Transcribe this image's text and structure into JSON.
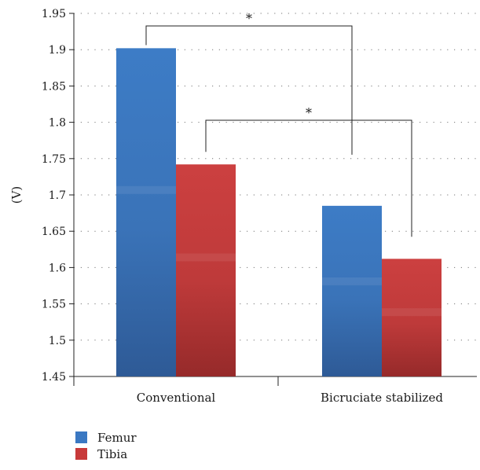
{
  "chart_data": {
    "type": "bar",
    "title": "",
    "xlabel": "",
    "ylabel": "(V)",
    "ylim": [
      1.45,
      1.95
    ],
    "yticks": [
      "1.45",
      "1.5",
      "1.55",
      "1.6",
      "1.65",
      "1.7",
      "1.75",
      "1.8",
      "1.85",
      "1.9",
      "1.95"
    ],
    "categories": [
      "Conventional",
      "Bicruciate stabilized"
    ],
    "series": [
      {
        "name": "Femur",
        "values": [
          1.902,
          1.685
        ]
      },
      {
        "name": "Tibia",
        "values": [
          1.742,
          1.612
        ]
      }
    ],
    "grid": "dotted-horizontal",
    "legend_placement": "bottom-left",
    "annotations": [
      {
        "text": "*",
        "between": "Femur Conventional vs Femur Bicruciate stabilized"
      },
      {
        "text": "*",
        "between": "Tibia Conventional vs Tibia Bicruciate stabilized"
      }
    ],
    "colors": {
      "Femur": "#3a78c2",
      "Tibia": "#c83a3a"
    }
  }
}
